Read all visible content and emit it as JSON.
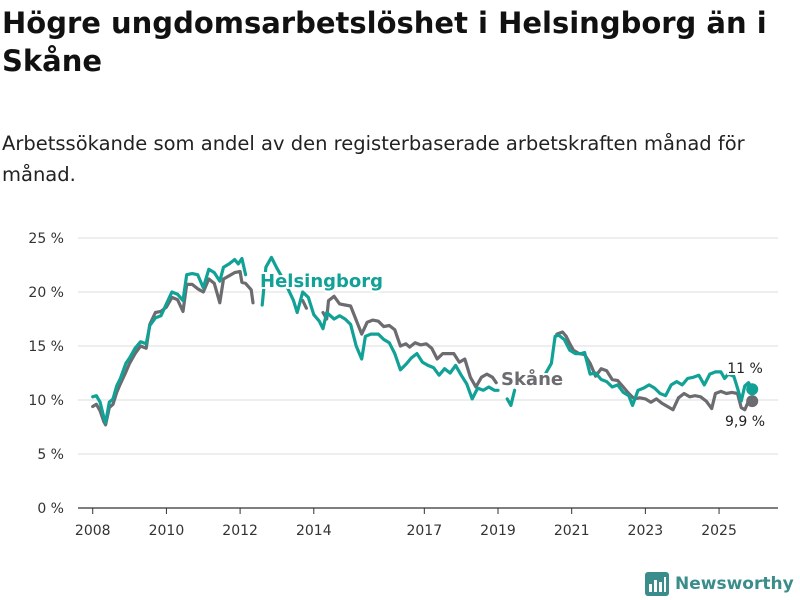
{
  "title": "Högre ungdomsarbetslöshet i Helsingborg än i Skåne",
  "subtitle": "Arbetssökande som andel av den registerbaserade arbetskraften månad för månad.",
  "brand": "Newsworthy",
  "colors": {
    "helsingborg": "#11a196",
    "skane": "#6b6b70",
    "grid": "#dddddd",
    "text": "#333333",
    "brand": "#3b8d8c"
  },
  "chart_data": {
    "type": "line",
    "title": "Högre ungdomsarbetslöshet i Helsingborg än i Skåne",
    "xlabel": "",
    "ylabel": "",
    "ylim": [
      0,
      25
    ],
    "xlim": [
      2007.6,
      2026.6
    ],
    "yticks": [
      0,
      5,
      10,
      15,
      20,
      25
    ],
    "ytick_labels": [
      "0 %",
      "5 %",
      "10 %",
      "15 %",
      "20 %",
      "25 %"
    ],
    "xticks": [
      2008,
      2010,
      2012,
      2014,
      2017,
      2019,
      2021,
      2023,
      2025
    ],
    "xtick_labels": [
      "2008",
      "2010",
      "2012",
      "2014",
      "2017",
      "2019",
      "2021",
      "2023",
      "2025"
    ],
    "grid": true,
    "series": [
      {
        "name": "Skåne",
        "label": "Skåne",
        "end_label": "9,9 %",
        "end_value": 9.9,
        "points": [
          [
            2008.0,
            9.4
          ],
          [
            2008.1,
            9.6
          ],
          [
            2008.2,
            9.0
          ],
          [
            2008.3,
            8.0
          ],
          [
            2008.35,
            7.7
          ],
          [
            2008.45,
            9.3
          ],
          [
            2008.55,
            9.6
          ],
          [
            2008.65,
            10.7
          ],
          [
            2008.75,
            11.5
          ],
          [
            2008.9,
            12.6
          ],
          [
            2009.0,
            13.4
          ],
          [
            2009.15,
            14.3
          ],
          [
            2009.3,
            15.0
          ],
          [
            2009.45,
            14.8
          ],
          [
            2009.55,
            17.0
          ],
          [
            2009.7,
            18.1
          ],
          [
            2009.85,
            18.2
          ],
          [
            2010.0,
            18.6
          ],
          [
            2010.15,
            19.5
          ],
          [
            2010.3,
            19.3
          ],
          [
            2010.45,
            18.2
          ],
          [
            2010.55,
            20.7
          ],
          [
            2010.7,
            20.7
          ],
          [
            2010.85,
            20.3
          ],
          [
            2011.0,
            20.0
          ],
          [
            2011.15,
            21.2
          ],
          [
            2011.3,
            20.8
          ],
          [
            2011.45,
            19.0
          ],
          [
            2011.55,
            21.2
          ],
          [
            2011.7,
            21.5
          ],
          [
            2011.85,
            21.8
          ],
          [
            2012.0,
            21.9
          ],
          [
            2012.05,
            20.9
          ],
          [
            2012.15,
            20.8
          ],
          [
            2012.3,
            20.2
          ],
          [
            2012.35,
            19.0
          ],
          [
            null,
            null
          ],
          [
            2013.7,
            19.2
          ],
          [
            2013.8,
            18.5
          ],
          [
            null,
            null
          ],
          [
            2014.25,
            18.1
          ],
          [
            2014.35,
            17.5
          ],
          [
            2014.4,
            19.2
          ],
          [
            2014.55,
            19.6
          ],
          [
            2014.7,
            18.9
          ],
          [
            2014.85,
            18.8
          ],
          [
            2015.0,
            18.7
          ],
          [
            2015.15,
            17.4
          ],
          [
            2015.3,
            16.1
          ],
          [
            2015.45,
            17.2
          ],
          [
            2015.6,
            17.4
          ],
          [
            2015.75,
            17.3
          ],
          [
            2015.9,
            16.8
          ],
          [
            2016.05,
            16.9
          ],
          [
            2016.2,
            16.5
          ],
          [
            2016.35,
            15.0
          ],
          [
            2016.5,
            15.2
          ],
          [
            2016.6,
            14.9
          ],
          [
            2016.75,
            15.3
          ],
          [
            2016.9,
            15.1
          ],
          [
            2017.05,
            15.2
          ],
          [
            2017.2,
            14.8
          ],
          [
            2017.35,
            13.8
          ],
          [
            2017.5,
            14.3
          ],
          [
            2017.65,
            14.3
          ],
          [
            2017.8,
            14.3
          ],
          [
            2017.95,
            13.5
          ],
          [
            2018.1,
            13.8
          ],
          [
            2018.25,
            12.1
          ],
          [
            2018.4,
            11.2
          ],
          [
            2018.55,
            12.1
          ],
          [
            2018.7,
            12.4
          ],
          [
            2018.85,
            12.1
          ],
          [
            2018.95,
            11.6
          ],
          [
            null,
            null
          ],
          [
            2020.6,
            16.1
          ],
          [
            2020.75,
            16.3
          ],
          [
            2020.85,
            15.9
          ],
          [
            2020.95,
            15.2
          ],
          [
            2021.05,
            14.6
          ],
          [
            2021.2,
            14.3
          ],
          [
            2021.35,
            14.2
          ],
          [
            2021.5,
            13.4
          ],
          [
            2021.65,
            12.2
          ],
          [
            2021.8,
            12.9
          ],
          [
            2021.95,
            12.7
          ],
          [
            2022.1,
            11.9
          ],
          [
            2022.25,
            11.8
          ],
          [
            2022.4,
            11.2
          ],
          [
            2022.55,
            10.6
          ],
          [
            2022.7,
            10.1
          ],
          [
            2022.85,
            10.2
          ],
          [
            2023.0,
            10.1
          ],
          [
            2023.15,
            9.8
          ],
          [
            2023.3,
            10.1
          ],
          [
            2023.45,
            9.7
          ],
          [
            2023.6,
            9.4
          ],
          [
            2023.75,
            9.1
          ],
          [
            2023.9,
            10.2
          ],
          [
            2024.05,
            10.6
          ],
          [
            2024.2,
            10.3
          ],
          [
            2024.35,
            10.4
          ],
          [
            2024.5,
            10.3
          ],
          [
            2024.65,
            9.9
          ],
          [
            2024.8,
            9.2
          ],
          [
            2024.9,
            10.6
          ],
          [
            2025.05,
            10.8
          ],
          [
            2025.2,
            10.6
          ],
          [
            2025.35,
            10.7
          ],
          [
            2025.5,
            10.6
          ],
          [
            2025.6,
            9.3
          ],
          [
            2025.7,
            9.1
          ],
          [
            2025.8,
            9.9
          ],
          [
            2025.9,
            9.9
          ]
        ]
      },
      {
        "name": "Helsingborg",
        "label": "Helsingborg",
        "end_label": "11 %",
        "end_value": 11,
        "points": [
          [
            2008.0,
            10.3
          ],
          [
            2008.1,
            10.4
          ],
          [
            2008.2,
            9.8
          ],
          [
            2008.3,
            8.4
          ],
          [
            2008.35,
            7.9
          ],
          [
            2008.45,
            9.8
          ],
          [
            2008.55,
            10.1
          ],
          [
            2008.65,
            11.3
          ],
          [
            2008.75,
            12.0
          ],
          [
            2008.9,
            13.4
          ],
          [
            2009.0,
            13.9
          ],
          [
            2009.15,
            14.8
          ],
          [
            2009.3,
            15.4
          ],
          [
            2009.45,
            15.2
          ],
          [
            2009.55,
            16.9
          ],
          [
            2009.7,
            17.6
          ],
          [
            2009.85,
            17.8
          ],
          [
            2010.0,
            18.9
          ],
          [
            2010.15,
            20.0
          ],
          [
            2010.3,
            19.8
          ],
          [
            2010.45,
            19.2
          ],
          [
            2010.55,
            21.6
          ],
          [
            2010.7,
            21.7
          ],
          [
            2010.85,
            21.6
          ],
          [
            2011.0,
            20.4
          ],
          [
            2011.15,
            22.1
          ],
          [
            2011.3,
            21.8
          ],
          [
            2011.45,
            21.0
          ],
          [
            2011.55,
            22.3
          ],
          [
            2011.7,
            22.6
          ],
          [
            2011.85,
            23.0
          ],
          [
            2011.95,
            22.6
          ],
          [
            2012.05,
            23.1
          ],
          [
            2012.15,
            21.6
          ],
          [
            null,
            null
          ],
          [
            2012.6,
            18.8
          ],
          [
            2012.7,
            22.3
          ],
          [
            2012.85,
            23.2
          ],
          [
            2013.0,
            22.2
          ],
          [
            2013.15,
            21.3
          ],
          [
            2013.3,
            20.3
          ],
          [
            2013.45,
            19.2
          ],
          [
            2013.55,
            18.1
          ],
          [
            2013.7,
            20.0
          ],
          [
            2013.85,
            19.5
          ],
          [
            2014.0,
            17.9
          ],
          [
            2014.15,
            17.3
          ],
          [
            2014.25,
            16.6
          ],
          [
            2014.35,
            18.1
          ],
          [
            2014.55,
            17.5
          ],
          [
            2014.7,
            17.8
          ],
          [
            2014.85,
            17.5
          ],
          [
            2015.0,
            17.0
          ],
          [
            2015.15,
            15.0
          ],
          [
            2015.3,
            13.8
          ],
          [
            2015.4,
            15.9
          ],
          [
            2015.55,
            16.1
          ],
          [
            2015.75,
            16.1
          ],
          [
            2015.9,
            15.6
          ],
          [
            2016.05,
            15.3
          ],
          [
            2016.2,
            14.3
          ],
          [
            2016.35,
            12.8
          ],
          [
            2016.5,
            13.3
          ],
          [
            2016.65,
            13.9
          ],
          [
            2016.8,
            14.3
          ],
          [
            2016.95,
            13.5
          ],
          [
            2017.1,
            13.2
          ],
          [
            2017.25,
            13.0
          ],
          [
            2017.4,
            12.3
          ],
          [
            2017.55,
            12.9
          ],
          [
            2017.7,
            12.5
          ],
          [
            2017.85,
            13.2
          ],
          [
            2018.0,
            12.3
          ],
          [
            2018.15,
            11.5
          ],
          [
            2018.3,
            10.1
          ],
          [
            2018.45,
            11.1
          ],
          [
            2018.6,
            10.9
          ],
          [
            2018.75,
            11.2
          ],
          [
            2018.9,
            10.9
          ],
          [
            2019.0,
            10.9
          ],
          [
            null,
            null
          ],
          [
            2019.25,
            10.1
          ],
          [
            2019.35,
            9.5
          ],
          [
            2019.45,
            10.9
          ],
          [
            null,
            null
          ],
          [
            2020.3,
            12.5
          ],
          [
            2020.45,
            13.4
          ],
          [
            2020.55,
            15.9
          ],
          [
            2020.65,
            16.0
          ],
          [
            2020.8,
            15.6
          ],
          [
            2020.95,
            14.6
          ],
          [
            2021.1,
            14.3
          ],
          [
            2021.25,
            14.3
          ],
          [
            2021.35,
            14.4
          ],
          [
            2021.5,
            12.4
          ],
          [
            2021.65,
            12.5
          ],
          [
            2021.8,
            11.9
          ],
          [
            2021.95,
            11.7
          ],
          [
            2022.1,
            11.2
          ],
          [
            2022.25,
            11.4
          ],
          [
            2022.4,
            10.7
          ],
          [
            2022.55,
            10.4
          ],
          [
            2022.65,
            9.5
          ],
          [
            2022.8,
            10.9
          ],
          [
            2022.95,
            11.1
          ],
          [
            2023.1,
            11.4
          ],
          [
            2023.25,
            11.1
          ],
          [
            2023.4,
            10.6
          ],
          [
            2023.55,
            10.4
          ],
          [
            2023.7,
            11.4
          ],
          [
            2023.85,
            11.7
          ],
          [
            2024.0,
            11.4
          ],
          [
            2024.15,
            12.0
          ],
          [
            2024.3,
            12.1
          ],
          [
            2024.45,
            12.3
          ],
          [
            2024.6,
            11.4
          ],
          [
            2024.75,
            12.4
          ],
          [
            2024.9,
            12.6
          ],
          [
            2025.05,
            12.6
          ],
          [
            2025.15,
            12.0
          ],
          [
            2025.25,
            12.4
          ],
          [
            2025.4,
            12.2
          ],
          [
            2025.5,
            11.1
          ],
          [
            2025.6,
            9.9
          ],
          [
            2025.7,
            11.3
          ],
          [
            2025.8,
            11.6
          ],
          [
            2025.9,
            11.0
          ]
        ]
      }
    ]
  }
}
